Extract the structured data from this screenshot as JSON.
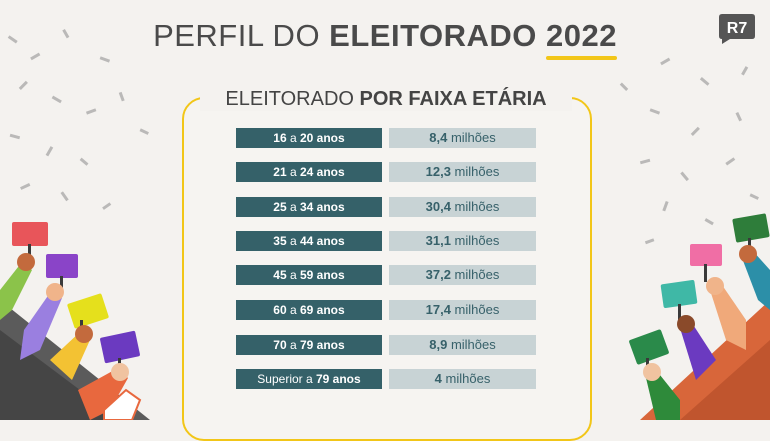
{
  "title": {
    "part1": "PERFIL DO ",
    "part2": "ELEITORADO",
    "year": "2022"
  },
  "logo": "R7",
  "subtitle": {
    "part1": "ELEITORADO ",
    "part2": "POR FAIXA ETÁRIA"
  },
  "rows": [
    {
      "age_from": "16",
      "age_sep": " a ",
      "age_to": "20 anos",
      "value_num": "8,4",
      "value_unit": " milhões"
    },
    {
      "age_from": "21",
      "age_sep": " a ",
      "age_to": "24 anos",
      "value_num": "12,3",
      "value_unit": " milhões"
    },
    {
      "age_from": "25",
      "age_sep": " a ",
      "age_to": "34 anos",
      "value_num": "30,4",
      "value_unit": " milhões"
    },
    {
      "age_from": "35",
      "age_sep": " a ",
      "age_to": "44 anos",
      "value_num": "31,1",
      "value_unit": " milhões"
    },
    {
      "age_from": "45",
      "age_sep": " a ",
      "age_to": "59 anos",
      "value_num": "37,2",
      "value_unit": " milhões"
    },
    {
      "age_from": "60",
      "age_sep": " a ",
      "age_to": "69 anos",
      "value_num": "17,4",
      "value_unit": " milhões"
    },
    {
      "age_from": "70",
      "age_sep": " a ",
      "age_to": "79 anos",
      "value_num": "8,9",
      "value_unit": " milhões"
    },
    {
      "age_from": "Superior",
      "age_sep": " a ",
      "age_to": "79 anos",
      "value_num": "4",
      "value_unit": " milhões"
    }
  ],
  "colors": {
    "accent": "#f2c618",
    "age_cell": "#356169",
    "value_cell": "#c8d3d5",
    "value_text": "#37616a"
  }
}
